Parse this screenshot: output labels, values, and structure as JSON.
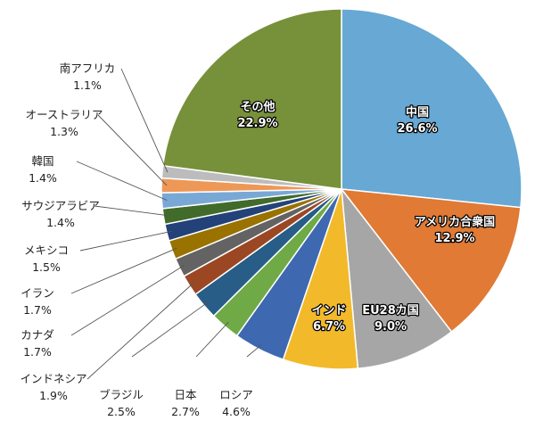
{
  "chart_data": {
    "type": "pie",
    "title": "",
    "start_angle_deg": 0,
    "direction": "clockwise",
    "slices": [
      {
        "label": "中国",
        "value": 26.6,
        "value_text": "26.6%",
        "color": "#67a8d4",
        "label_position": "inside"
      },
      {
        "label": "アメリカ合衆国",
        "value": 12.9,
        "value_text": "12.9%",
        "color": "#e07a35",
        "label_position": "inside"
      },
      {
        "label": "EU28カ国",
        "value": 9.0,
        "value_text": "9.0%",
        "color": "#a6a6a6",
        "label_position": "inside"
      },
      {
        "label": "インド",
        "value": 6.7,
        "value_text": "6.7%",
        "color": "#f2b92a",
        "label_position": "inside"
      },
      {
        "label": "ロシア",
        "value": 4.6,
        "value_text": "4.6%",
        "color": "#3e68b0",
        "label_position": "outside"
      },
      {
        "label": "日本",
        "value": 2.7,
        "value_text": "2.7%",
        "color": "#6faa46",
        "label_position": "outside",
        "label_color": "#e0201b"
      },
      {
        "label": "ブラジル",
        "value": 2.5,
        "value_text": "2.5%",
        "color": "#275d87",
        "label_position": "outside"
      },
      {
        "label": "インドネシア",
        "value": 1.9,
        "value_text": "1.9%",
        "color": "#9c4723",
        "label_position": "outside"
      },
      {
        "label": "カナダ",
        "value": 1.7,
        "value_text": "1.7%",
        "color": "#636363",
        "label_position": "outside"
      },
      {
        "label": "イラン",
        "value": 1.7,
        "value_text": "1.7%",
        "color": "#997200",
        "label_position": "outside"
      },
      {
        "label": "メキシコ",
        "value": 1.5,
        "value_text": "1.5%",
        "color": "#23427a",
        "label_position": "outside"
      },
      {
        "label": "サウジアラビア",
        "value": 1.4,
        "value_text": "1.4%",
        "color": "#416b2a",
        "label_position": "outside"
      },
      {
        "label": "韓国",
        "value": 1.4,
        "value_text": "1.4%",
        "color": "#79a8d6",
        "label_position": "outside"
      },
      {
        "label": "オーストラリア",
        "value": 1.3,
        "value_text": "1.3%",
        "color": "#ee9858",
        "label_position": "outside"
      },
      {
        "label": "南アフリカ",
        "value": 1.1,
        "value_text": "1.1%",
        "color": "#bcbcbc",
        "label_position": "outside"
      },
      {
        "label": "その他",
        "value": 22.9,
        "value_text": "22.9%",
        "color": "#77903a",
        "label_position": "inside"
      }
    ]
  }
}
